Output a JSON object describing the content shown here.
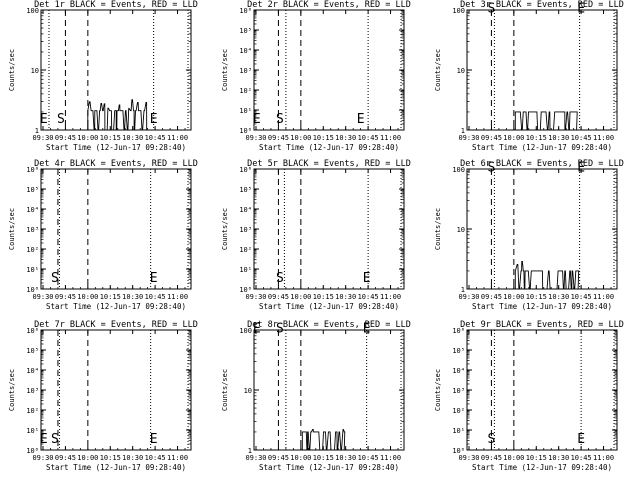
{
  "figure": {
    "xlabel": "Start Time (12-Jun-17 09:28:40)",
    "ylabel": "Counts/sec",
    "x_ticks": [
      "09:30",
      "09:45",
      "10:00",
      "10:15",
      "10:30",
      "10:45",
      "11:00"
    ],
    "marker_S": "S",
    "marker_E": "E"
  },
  "chart_data": [
    {
      "type": "line",
      "title": "Det 1r BLACK = Events, RED = LLD",
      "scale": "log",
      "ylim": [
        1,
        100
      ],
      "y_ticks": [
        "1",
        "10",
        "100"
      ],
      "x_range": [
        "09:28:40",
        "11:09:00"
      ],
      "dashed_lines": [
        "09:45",
        "10:00"
      ],
      "dotted_lines": [
        "09:34",
        "10:44",
        "11:07"
      ],
      "markers": [
        {
          "label": "E",
          "x": "09:30:30",
          "y": 1.3
        },
        {
          "label": "S",
          "x": "09:42",
          "y": 1.3
        },
        {
          "label": "E",
          "x": "10:44",
          "y": 1.3
        }
      ],
      "events": {
        "x_start": "10:00",
        "x_end": "10:40",
        "base": 1,
        "level": 2.1,
        "max": 4.0
      }
    },
    {
      "type": "line",
      "title": "Det 2r BLACK = Events, RED = LLD",
      "scale": "log",
      "ylim": [
        1,
        1000000
      ],
      "y_ticks": [
        "10⁰",
        "10¹",
        "10²",
        "10³",
        "10⁴",
        "10⁵",
        "10⁶"
      ],
      "x_range": [
        "09:28:40",
        "11:09:00"
      ],
      "dashed_lines": [
        "09:45",
        "10:00"
      ],
      "dotted_lines": [
        "09:50",
        "10:45",
        "11:07"
      ],
      "markers": [
        {
          "label": "E",
          "x": "09:30:30",
          "y": 2.2
        },
        {
          "label": "S",
          "x": "09:46",
          "y": 2.2
        },
        {
          "label": "E",
          "x": "10:40",
          "y": 2.2
        }
      ],
      "events": null
    },
    {
      "type": "line",
      "title": "Det 3r BLACK = Events, RED = LLD",
      "scale": "log",
      "ylim": [
        1,
        100
      ],
      "y_ticks": [
        "1",
        "10",
        "100"
      ],
      "x_range": [
        "09:28:40",
        "11:09:00"
      ],
      "dashed_lines": [
        "09:45",
        "10:00"
      ],
      "dotted_lines": [
        "09:47",
        "10:44",
        "11:07"
      ],
      "markers": [
        {
          "label": "S",
          "x": "09:45",
          "y": 90
        },
        {
          "label": "E",
          "x": "10:45",
          "y": 90
        }
      ],
      "events": {
        "x_start": "10:01",
        "x_end": "10:42",
        "base": 1,
        "level": 2.0,
        "max": 3.5
      }
    },
    {
      "type": "line",
      "title": "Det 4r BLACK = Events, RED = LLD",
      "scale": "log",
      "ylim": [
        1,
        1000000
      ],
      "y_ticks": [
        "10⁰",
        "10¹",
        "10²",
        "10³",
        "10⁴",
        "10⁵",
        "10⁶"
      ],
      "x_range": [
        "09:28:40",
        "11:09:00"
      ],
      "dashed_lines": [
        "09:40",
        "10:00"
      ],
      "dotted_lines": [
        "09:41",
        "10:42",
        "11:07"
      ],
      "markers": [
        {
          "label": "S",
          "x": "09:38",
          "y": 2.2
        },
        {
          "label": "E",
          "x": "10:44",
          "y": 2.2
        }
      ],
      "events": null
    },
    {
      "type": "line",
      "title": "Det 5r BLACK = Events, RED = LLD",
      "scale": "log",
      "ylim": [
        1,
        1000000
      ],
      "y_ticks": [
        "10⁰",
        "10¹",
        "10²",
        "10³",
        "10⁴",
        "10⁵",
        "10⁶"
      ],
      "x_range": [
        "09:28:40",
        "11:09:00"
      ],
      "dashed_lines": [
        "09:45",
        "10:00"
      ],
      "dotted_lines": [
        "09:49",
        "10:45",
        "11:07"
      ],
      "markers": [
        {
          "label": "S",
          "x": "09:46",
          "y": 2.2
        },
        {
          "label": "E",
          "x": "10:44",
          "y": 2.2
        }
      ],
      "events": null
    },
    {
      "type": "line",
      "title": "Det 6r BLACK = Events, RED = LLD",
      "scale": "log",
      "ylim": [
        1,
        100
      ],
      "y_ticks": [
        "1",
        "10",
        "100"
      ],
      "x_range": [
        "09:28:40",
        "11:09:00"
      ],
      "dashed_lines": [
        "09:45",
        "10:00"
      ],
      "dotted_lines": [
        "09:47",
        "10:44",
        "11:07"
      ],
      "markers": [
        {
          "label": "S",
          "x": "09:45",
          "y": 90
        },
        {
          "label": "E",
          "x": "10:45",
          "y": 90
        }
      ],
      "events": {
        "x_start": "10:01",
        "x_end": "10:43",
        "base": 1,
        "level": 2.0,
        "max": 3.0
      }
    },
    {
      "type": "line",
      "title": "Det 7r BLACK = Events, RED = LLD",
      "scale": "log",
      "ylim": [
        1,
        1000000
      ],
      "y_ticks": [
        "10⁰",
        "10¹",
        "10²",
        "10³",
        "10⁴",
        "10⁵",
        "10⁶"
      ],
      "x_range": [
        "09:28:40",
        "11:09:00"
      ],
      "dashed_lines": [
        "09:40",
        "10:00"
      ],
      "dotted_lines": [
        "09:41",
        "10:42",
        "11:07"
      ],
      "markers": [
        {
          "label": "E",
          "x": "09:30:30",
          "y": 2.2
        },
        {
          "label": "S",
          "x": "09:38",
          "y": 2.2
        },
        {
          "label": "E",
          "x": "10:44",
          "y": 2.2
        }
      ],
      "events": null
    },
    {
      "type": "line",
      "title": "Det 8r BLACK = Events, RED = LLD",
      "scale": "log",
      "ylim": [
        1,
        100
      ],
      "y_ticks": [
        "1",
        "10",
        "100"
      ],
      "x_range": [
        "09:28:40",
        "11:09:00"
      ],
      "dashed_lines": [
        "09:45",
        "10:00"
      ],
      "dotted_lines": [
        "09:50",
        "10:44",
        "11:07"
      ],
      "markers": [
        {
          "label": "E",
          "x": "09:30:30",
          "y": 90
        },
        {
          "label": "S",
          "x": "09:46",
          "y": 90
        },
        {
          "label": "E",
          "x": "10:44",
          "y": 90
        }
      ],
      "events": {
        "x_start": "10:01",
        "x_end": "10:29",
        "base": 1,
        "level": 2.0,
        "max": 2.6
      }
    },
    {
      "type": "line",
      "title": "Det 9r BLACK = Events, RED = LLD",
      "scale": "log",
      "ylim": [
        1,
        1000000
      ],
      "y_ticks": [
        "10⁰",
        "10¹",
        "10²",
        "10³",
        "10⁴",
        "10⁵",
        "10⁶"
      ],
      "x_range": [
        "09:28:40",
        "11:09:00"
      ],
      "dashed_lines": [
        "09:45",
        "10:00"
      ],
      "dotted_lines": [
        "09:47",
        "10:45",
        "11:07"
      ],
      "markers": [
        {
          "label": "S",
          "x": "09:45",
          "y": 2.2
        },
        {
          "label": "E",
          "x": "10:45",
          "y": 2.2
        }
      ],
      "events": null
    }
  ]
}
